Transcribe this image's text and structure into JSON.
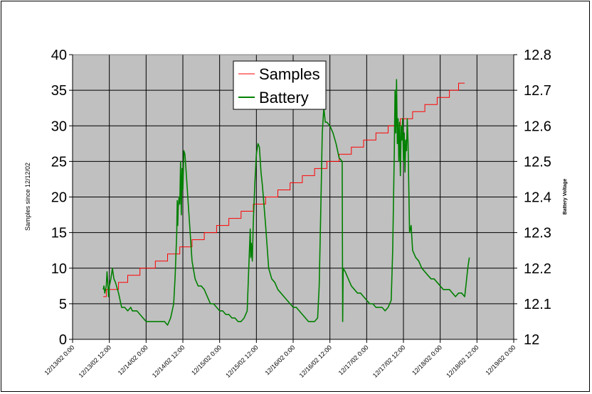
{
  "chart_data": {
    "type": "line",
    "title": "",
    "ylabel": "Samples since 12/12/02",
    "y2label": "Battery Voltage",
    "xlim": [
      "12/13/02 0:00",
      "12/19/02 0:00"
    ],
    "ylim": [
      0,
      40
    ],
    "y2lim": [
      12.0,
      12.8
    ],
    "grid": true,
    "legend": "top-center",
    "x_ticks": [
      "12/13/02 0:00",
      "12/13/02 12:00",
      "12/14/02 0:00",
      "12/14/02 12:00",
      "12/15/02 0:00",
      "12/15/02 12:00",
      "12/16/02 0:00",
      "12/16/02 12:00",
      "12/17/02 0:00",
      "12/17/02 12:00",
      "12/18/02 0:00",
      "12/18/02 12:00",
      "12/19/02 0:00"
    ],
    "y_ticks": [
      "0",
      "5",
      "10",
      "15",
      "20",
      "25",
      "30",
      "35",
      "40"
    ],
    "y2_ticks": [
      "12",
      "12.1",
      "12.2",
      "12.3",
      "12.4",
      "12.5",
      "12.6",
      "12.7",
      "12.8"
    ],
    "series": [
      {
        "name": "Samples",
        "color": "#ff0000",
        "axis": "left",
        "step": true,
        "points": [
          [
            "12/13/02 10:00",
            6
          ],
          [
            "12/13/02 11:00",
            7
          ],
          [
            "12/13/02 15:00",
            8
          ],
          [
            "12/13/02 18:00",
            9
          ],
          [
            "12/13/02 22:00",
            10
          ],
          [
            "12/14/02 3:00",
            11
          ],
          [
            "12/14/02 7:00",
            12
          ],
          [
            "12/14/02 11:00",
            13
          ],
          [
            "12/14/02 15:00",
            14
          ],
          [
            "12/14/02 19:00",
            15
          ],
          [
            "12/14/02 23:00",
            16
          ],
          [
            "12/15/02 3:00",
            17
          ],
          [
            "12/15/02 7:00",
            18
          ],
          [
            "12/15/02 11:00",
            19
          ],
          [
            "12/15/02 15:00",
            20
          ],
          [
            "12/15/02 19:00",
            21
          ],
          [
            "12/15/02 23:00",
            22
          ],
          [
            "12/16/02 3:00",
            23
          ],
          [
            "12/16/02 7:00",
            24
          ],
          [
            "12/16/02 11:00",
            25
          ],
          [
            "12/16/02 15:00",
            26
          ],
          [
            "12/16/02 19:00",
            27
          ],
          [
            "12/16/02 23:00",
            28
          ],
          [
            "12/17/02 3:00",
            29
          ],
          [
            "12/17/02 7:00",
            30
          ],
          [
            "12/17/02 11:00",
            31
          ],
          [
            "12/17/02 15:00",
            32
          ],
          [
            "12/17/02 19:00",
            33
          ],
          [
            "12/17/02 23:00",
            34
          ],
          [
            "12/18/02 3:00",
            35
          ],
          [
            "12/18/02 6:00",
            36
          ],
          [
            "12/18/02 8:00",
            36
          ]
        ]
      },
      {
        "name": "Battery",
        "color": "#008000",
        "axis": "right",
        "points": [
          [
            "12/13/02 10:00",
            12.14
          ],
          [
            "12/13/02 10:15",
            12.15
          ],
          [
            "12/13/02 10:30",
            12.13
          ],
          [
            "12/13/02 11:00",
            12.15
          ],
          [
            "12/13/02 11:15",
            12.19
          ],
          [
            "12/13/02 11:30",
            12.16
          ],
          [
            "12/13/02 11:45",
            12.12
          ],
          [
            "12/13/02 12:00",
            12.15
          ],
          [
            "12/13/02 12:30",
            12.17
          ],
          [
            "12/13/02 13:00",
            12.2
          ],
          [
            "12/13/02 13:30",
            12.17
          ],
          [
            "12/13/02 14:00",
            12.16
          ],
          [
            "12/13/02 15:00",
            12.13
          ],
          [
            "12/13/02 16:00",
            12.09
          ],
          [
            "12/13/02 17:00",
            12.09
          ],
          [
            "12/13/02 18:00",
            12.08
          ],
          [
            "12/13/02 19:00",
            12.09
          ],
          [
            "12/13/02 19:30",
            12.08
          ],
          [
            "12/13/02 21:00",
            12.08
          ],
          [
            "12/13/02 22:00",
            12.07
          ],
          [
            "12/13/02 23:00",
            12.06
          ],
          [
            "12/14/02 0:00",
            12.05
          ],
          [
            "12/14/02 2:00",
            12.05
          ],
          [
            "12/14/02 4:00",
            12.05
          ],
          [
            "12/14/02 6:00",
            12.05
          ],
          [
            "12/14/02 7:00",
            12.04
          ],
          [
            "12/14/02 7:30",
            12.05
          ],
          [
            "12/14/02 8:00",
            12.06
          ],
          [
            "12/14/02 9:00",
            12.1
          ],
          [
            "12/14/02 9:30",
            12.18
          ],
          [
            "12/14/02 10:00",
            12.3
          ],
          [
            "12/14/02 10:10",
            12.39
          ],
          [
            "12/14/02 10:20",
            12.32
          ],
          [
            "12/14/02 10:30",
            12.37
          ],
          [
            "12/14/02 10:45",
            12.4
          ],
          [
            "12/14/02 11:00",
            12.38
          ],
          [
            "12/14/02 11:15",
            12.5
          ],
          [
            "12/14/02 11:30",
            12.35
          ],
          [
            "12/14/02 11:45",
            12.48
          ],
          [
            "12/14/02 12:00",
            12.42
          ],
          [
            "12/14/02 12:20",
            12.53
          ],
          [
            "12/14/02 12:40",
            12.52
          ],
          [
            "12/14/02 13:00",
            12.48
          ],
          [
            "12/14/02 14:00",
            12.35
          ],
          [
            "12/14/02 15:00",
            12.22
          ],
          [
            "12/14/02 16:00",
            12.17
          ],
          [
            "12/14/02 17:00",
            12.15
          ],
          [
            "12/14/02 18:00",
            12.15
          ],
          [
            "12/14/02 19:00",
            12.14
          ],
          [
            "12/14/02 20:00",
            12.12
          ],
          [
            "12/14/02 21:00",
            12.1
          ],
          [
            "12/14/02 22:00",
            12.1
          ],
          [
            "12/14/02 23:00",
            12.09
          ],
          [
            "12/15/02 0:00",
            12.08
          ],
          [
            "12/15/02 1:00",
            12.08
          ],
          [
            "12/15/02 2:00",
            12.07
          ],
          [
            "12/15/02 3:00",
            12.07
          ],
          [
            "12/15/02 4:00",
            12.06
          ],
          [
            "12/15/02 5:00",
            12.06
          ],
          [
            "12/15/02 6:00",
            12.05
          ],
          [
            "12/15/02 7:00",
            12.05
          ],
          [
            "12/15/02 8:00",
            12.06
          ],
          [
            "12/15/02 9:00",
            12.08
          ],
          [
            "12/15/02 9:30",
            12.2
          ],
          [
            "12/15/02 10:00",
            12.31
          ],
          [
            "12/15/02 10:10",
            12.23
          ],
          [
            "12/15/02 10:20",
            12.27
          ],
          [
            "12/15/02 10:40",
            12.22
          ],
          [
            "12/15/02 11:00",
            12.33
          ],
          [
            "12/15/02 11:30",
            12.44
          ],
          [
            "12/15/02 12:00",
            12.52
          ],
          [
            "12/15/02 12:30",
            12.55
          ],
          [
            "12/15/02 13:00",
            12.54
          ],
          [
            "12/15/02 13:30",
            12.47
          ],
          [
            "12/15/02 14:00",
            12.43
          ],
          [
            "12/15/02 15:00",
            12.32
          ],
          [
            "12/15/02 16:00",
            12.2
          ],
          [
            "12/15/02 17:00",
            12.17
          ],
          [
            "12/15/02 18:00",
            12.16
          ],
          [
            "12/15/02 19:00",
            12.14
          ],
          [
            "12/15/02 20:00",
            12.13
          ],
          [
            "12/15/02 21:00",
            12.12
          ],
          [
            "12/15/02 22:00",
            12.11
          ],
          [
            "12/15/02 23:00",
            12.1
          ],
          [
            "12/16/02 0:00",
            12.09
          ],
          [
            "12/16/02 1:00",
            12.09
          ],
          [
            "12/16/02 2:00",
            12.08
          ],
          [
            "12/16/02 3:00",
            12.07
          ],
          [
            "12/16/02 4:00",
            12.06
          ],
          [
            "12/16/02 5:00",
            12.05
          ],
          [
            "12/16/02 6:00",
            12.05
          ],
          [
            "12/16/02 7:00",
            12.05
          ],
          [
            "12/16/02 8:00",
            12.06
          ],
          [
            "12/16/02 8:30",
            12.15
          ],
          [
            "12/16/02 9:00",
            12.36
          ],
          [
            "12/16/02 9:30",
            12.58
          ],
          [
            "12/16/02 10:00",
            12.65
          ],
          [
            "12/16/02 10:30",
            12.61
          ],
          [
            "12/16/02 11:00",
            12.61
          ],
          [
            "12/16/02 12:00",
            12.6
          ],
          [
            "12/16/02 13:00",
            12.58
          ],
          [
            "12/16/02 14:00",
            12.55
          ],
          [
            "12/16/02 15:00",
            12.51
          ],
          [
            "12/16/02 16:00",
            12.5
          ],
          [
            "12/16/02 16:10",
            12.05
          ],
          [
            "12/16/02 16:20",
            12.2
          ],
          [
            "12/16/02 17:00",
            12.19
          ],
          [
            "12/16/02 18:00",
            12.17
          ],
          [
            "12/16/02 19:00",
            12.15
          ],
          [
            "12/16/02 20:00",
            12.14
          ],
          [
            "12/16/02 21:00",
            12.13
          ],
          [
            "12/16/02 22:00",
            12.13
          ],
          [
            "12/16/02 23:00",
            12.12
          ],
          [
            "12/17/02 0:00",
            12.11
          ],
          [
            "12/17/02 1:00",
            12.1
          ],
          [
            "12/17/02 2:00",
            12.1
          ],
          [
            "12/17/02 3:00",
            12.09
          ],
          [
            "12/17/02 4:00",
            12.09
          ],
          [
            "12/17/02 5:00",
            12.09
          ],
          [
            "12/17/02 6:00",
            12.08
          ],
          [
            "12/17/02 7:00",
            12.09
          ],
          [
            "12/17/02 8:00",
            12.11
          ],
          [
            "12/17/02 8:30",
            12.25
          ],
          [
            "12/17/02 9:00",
            12.52
          ],
          [
            "12/17/02 9:15",
            12.7
          ],
          [
            "12/17/02 9:30",
            12.58
          ],
          [
            "12/17/02 9:45",
            12.73
          ],
          [
            "12/17/02 10:00",
            12.55
          ],
          [
            "12/17/02 10:15",
            12.62
          ],
          [
            "12/17/02 10:30",
            12.5
          ],
          [
            "12/17/02 10:45",
            12.61
          ],
          [
            "12/17/02 11:00",
            12.46
          ],
          [
            "12/17/02 11:15",
            12.6
          ],
          [
            "12/17/02 11:30",
            12.56
          ],
          [
            "12/17/02 11:45",
            12.62
          ],
          [
            "12/17/02 12:00",
            12.5
          ],
          [
            "12/17/02 12:15",
            12.58
          ],
          [
            "12/17/02 12:30",
            12.47
          ],
          [
            "12/17/02 12:45",
            12.56
          ],
          [
            "12/17/02 13:00",
            12.53
          ],
          [
            "12/17/02 13:15",
            12.62
          ],
          [
            "12/17/02 13:30",
            12.55
          ],
          [
            "12/17/02 14:00",
            12.3
          ],
          [
            "12/17/02 14:30",
            12.32
          ],
          [
            "12/17/02 15:00",
            12.25
          ],
          [
            "12/17/02 16:00",
            12.23
          ],
          [
            "12/17/02 17:00",
            12.22
          ],
          [
            "12/17/02 18:00",
            12.2
          ],
          [
            "12/17/02 19:00",
            12.19
          ],
          [
            "12/17/02 20:00",
            12.18
          ],
          [
            "12/17/02 21:00",
            12.17
          ],
          [
            "12/17/02 22:00",
            12.17
          ],
          [
            "12/17/02 23:00",
            12.16
          ],
          [
            "12/18/02 0:00",
            12.15
          ],
          [
            "12/18/02 1:00",
            12.14
          ],
          [
            "12/18/02 2:00",
            12.14
          ],
          [
            "12/18/02 3:00",
            12.14
          ],
          [
            "12/18/02 4:00",
            12.13
          ],
          [
            "12/18/02 5:00",
            12.12
          ],
          [
            "12/18/02 6:00",
            12.13
          ],
          [
            "12/18/02 7:00",
            12.13
          ],
          [
            "12/18/02 8:00",
            12.12
          ],
          [
            "12/18/02 8:30",
            12.16
          ],
          [
            "12/18/02 9:00",
            12.2
          ],
          [
            "12/18/02 9:30",
            12.23
          ]
        ]
      }
    ]
  }
}
